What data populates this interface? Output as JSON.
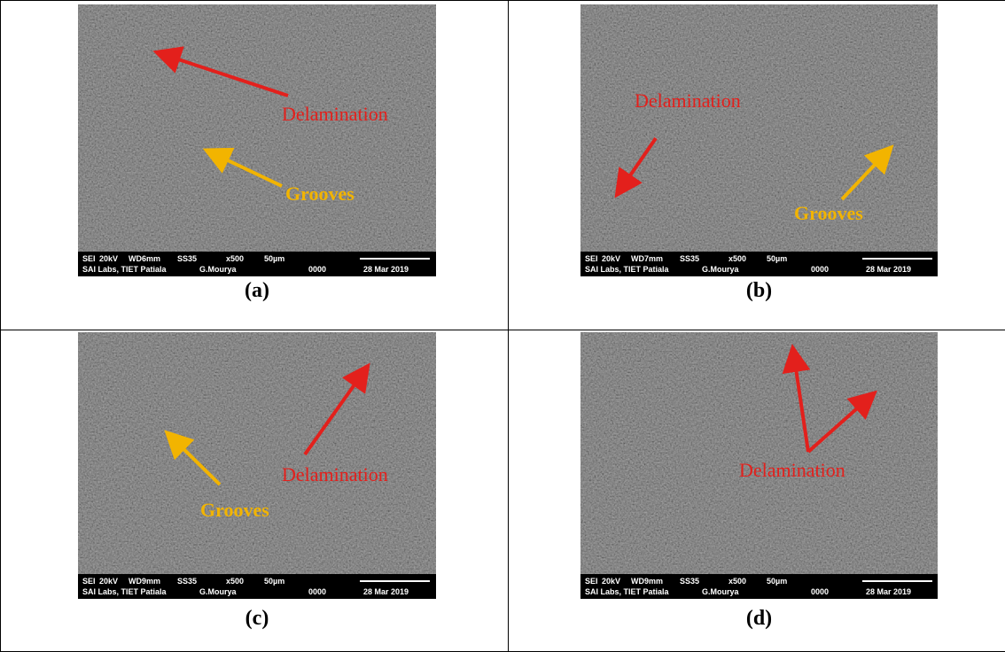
{
  "panels": [
    {
      "label": "(a)",
      "databar": {
        "row1": [
          "SEI",
          "20kV",
          "WD6mm",
          "SS35",
          "x500",
          "50µm"
        ],
        "row2": [
          "SAI Labs, TIET Patiala",
          "G.Mourya",
          "0000",
          "28 Mar 2019"
        ]
      },
      "annotations": [
        "Delamination",
        "Grooves"
      ]
    },
    {
      "label": "(b)",
      "databar": {
        "row1": [
          "SEI",
          "20kV",
          "WD7mm",
          "SS35",
          "x500",
          "50µm"
        ],
        "row2": [
          "SAI Labs, TIET Patiala",
          "G.Mourya",
          "0000",
          "28 Mar 2019"
        ]
      },
      "annotations": [
        "Delamination",
        "Grooves"
      ]
    },
    {
      "label": "(c)",
      "databar": {
        "row1": [
          "SEI",
          "20kV",
          "WD9mm",
          "SS35",
          "x500",
          "50µm"
        ],
        "row2": [
          "SAI Labs, TIET Patiala",
          "G.Mourya",
          "0000",
          "28 Mar 2019"
        ]
      },
      "annotations": [
        "Delamination",
        "Grooves"
      ]
    },
    {
      "label": "(d)",
      "databar": {
        "row1": [
          "SEI",
          "20kV",
          "WD9mm",
          "SS35",
          "x500",
          "50µm"
        ],
        "row2": [
          "SAI Labs, TIET Patiala",
          "G.Mourya",
          "0000",
          "28 Mar 2019"
        ]
      },
      "annotations": [
        "Delamination"
      ]
    }
  ]
}
